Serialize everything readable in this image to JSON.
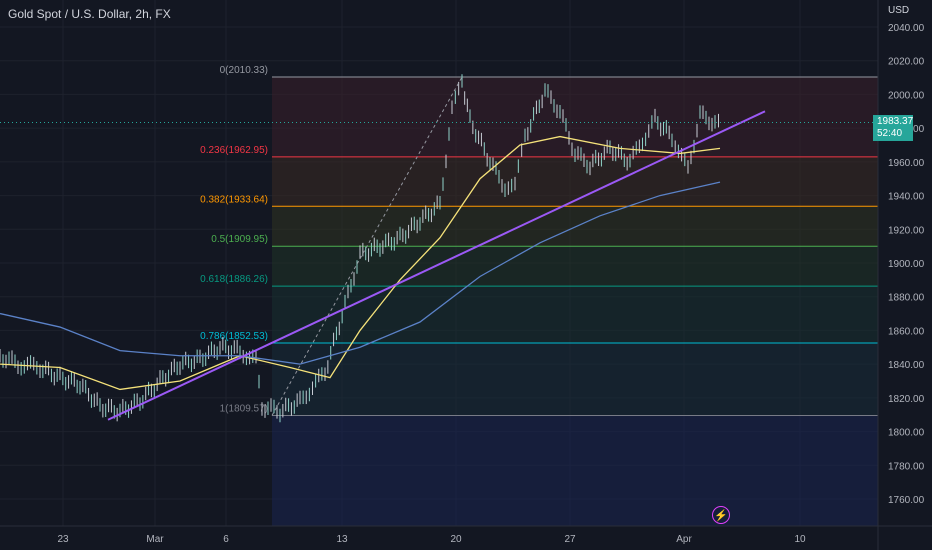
{
  "header": {
    "title": "Gold Spot / U.S. Dollar, 2h, FX",
    "currency": "USD"
  },
  "price_badge": {
    "price": "1983.37",
    "countdown": "52:40",
    "color": "#26a69a"
  },
  "icons": {
    "bolt": "lightning-icon"
  },
  "chart_data": {
    "type": "candlestick",
    "title": "Gold Spot / U.S. Dollar, 2h, FX",
    "ylim": [
      1740,
      2040
    ],
    "y_ticks": [
      1760,
      1780,
      1800,
      1820,
      1840,
      1860,
      1880,
      1900,
      1920,
      1940,
      1960,
      1980,
      2000,
      2020,
      2040
    ],
    "y_tick_labels": [
      "1760.00",
      "1780.00",
      "1800.00",
      "1820.00",
      "1840.00",
      "1860.00",
      "1880.00",
      "1900.00",
      "1920.00",
      "1940.00",
      "1960.00",
      "1980.00",
      "2000.00",
      "2020.00",
      "2040.00"
    ],
    "x_ticks": [
      "23",
      "Mar",
      "6",
      "13",
      "20",
      "27",
      "Apr",
      "10"
    ],
    "last_price": 1983.37,
    "fibonacci": [
      {
        "level": "0",
        "price": 2010.33,
        "label": "0(2010.33)",
        "color": "#9598a1"
      },
      {
        "level": "0.236",
        "price": 1962.95,
        "label": "0.236(1962.95)",
        "color": "#f23645"
      },
      {
        "level": "0.382",
        "price": 1933.64,
        "label": "0.382(1933.64)",
        "color": "#ff9800"
      },
      {
        "level": "0.5",
        "price": 1909.95,
        "label": "0.5(1909.95)",
        "color": "#4caf50"
      },
      {
        "level": "0.618",
        "price": 1886.26,
        "label": "0.618(1886.26)",
        "color": "#089981"
      },
      {
        "level": "0.786",
        "price": 1852.53,
        "label": "0.786(1852.53)",
        "color": "#00bcd4"
      },
      {
        "level": "1",
        "price": 1809.57,
        "label": "1(1809.57)",
        "color": "#787b86"
      }
    ],
    "series": [
      {
        "kind": "close_path",
        "color": "#26a69a",
        "points": [
          [
            0,
            1845
          ],
          [
            18,
            1840
          ],
          [
            40,
            1838
          ],
          [
            60,
            1832
          ],
          [
            80,
            1828
          ],
          [
            100,
            1815
          ],
          [
            120,
            1812
          ],
          [
            140,
            1818
          ],
          [
            160,
            1830
          ],
          [
            180,
            1840
          ],
          [
            200,
            1843
          ],
          [
            220,
            1850
          ],
          [
            240,
            1848
          ],
          [
            256,
            1842
          ],
          [
            262,
            1815
          ],
          [
            280,
            1812
          ],
          [
            300,
            1818
          ],
          [
            325,
            1835
          ],
          [
            345,
            1875
          ],
          [
            360,
            1905
          ],
          [
            380,
            1910
          ],
          [
            400,
            1915
          ],
          [
            420,
            1925
          ],
          [
            440,
            1935
          ],
          [
            452,
            1990
          ],
          [
            462,
            2008
          ],
          [
            470,
            1985
          ],
          [
            490,
            1960
          ],
          [
            505,
            1945
          ],
          [
            515,
            1945
          ],
          [
            525,
            1975
          ],
          [
            545,
            2002
          ],
          [
            560,
            1990
          ],
          [
            575,
            1965
          ],
          [
            590,
            1958
          ],
          [
            610,
            1968
          ],
          [
            630,
            1960
          ],
          [
            655,
            1985
          ],
          [
            672,
            1975
          ],
          [
            688,
            1955
          ],
          [
            700,
            1988
          ],
          [
            715,
            1983
          ],
          [
            722,
            1983
          ]
        ]
      },
      {
        "kind": "moving_average",
        "name": "",
        "color": "#f5e27a",
        "points": [
          [
            0,
            1840
          ],
          [
            60,
            1838
          ],
          [
            120,
            1825
          ],
          [
            180,
            1830
          ],
          [
            240,
            1845
          ],
          [
            290,
            1838
          ],
          [
            330,
            1832
          ],
          [
            360,
            1860
          ],
          [
            400,
            1890
          ],
          [
            440,
            1915
          ],
          [
            480,
            1950
          ],
          [
            520,
            1970
          ],
          [
            560,
            1975
          ],
          [
            620,
            1968
          ],
          [
            680,
            1965
          ],
          [
            720,
            1968
          ]
        ]
      },
      {
        "kind": "moving_average",
        "name": "",
        "color": "#5b82c8",
        "points": [
          [
            0,
            1870
          ],
          [
            60,
            1862
          ],
          [
            120,
            1848
          ],
          [
            180,
            1845
          ],
          [
            240,
            1845
          ],
          [
            300,
            1840
          ],
          [
            360,
            1850
          ],
          [
            420,
            1865
          ],
          [
            480,
            1892
          ],
          [
            540,
            1912
          ],
          [
            600,
            1928
          ],
          [
            660,
            1940
          ],
          [
            720,
            1948
          ]
        ]
      },
      {
        "kind": "trendline",
        "name": "",
        "color": "#9b59f5",
        "points": [
          [
            108,
            1807
          ],
          [
            765,
            1990
          ]
        ]
      },
      {
        "kind": "fib_anchor",
        "name": "",
        "color": "#9598a1",
        "points": [
          [
            272,
            1809.57
          ],
          [
            462,
            2010.33
          ]
        ]
      }
    ]
  }
}
